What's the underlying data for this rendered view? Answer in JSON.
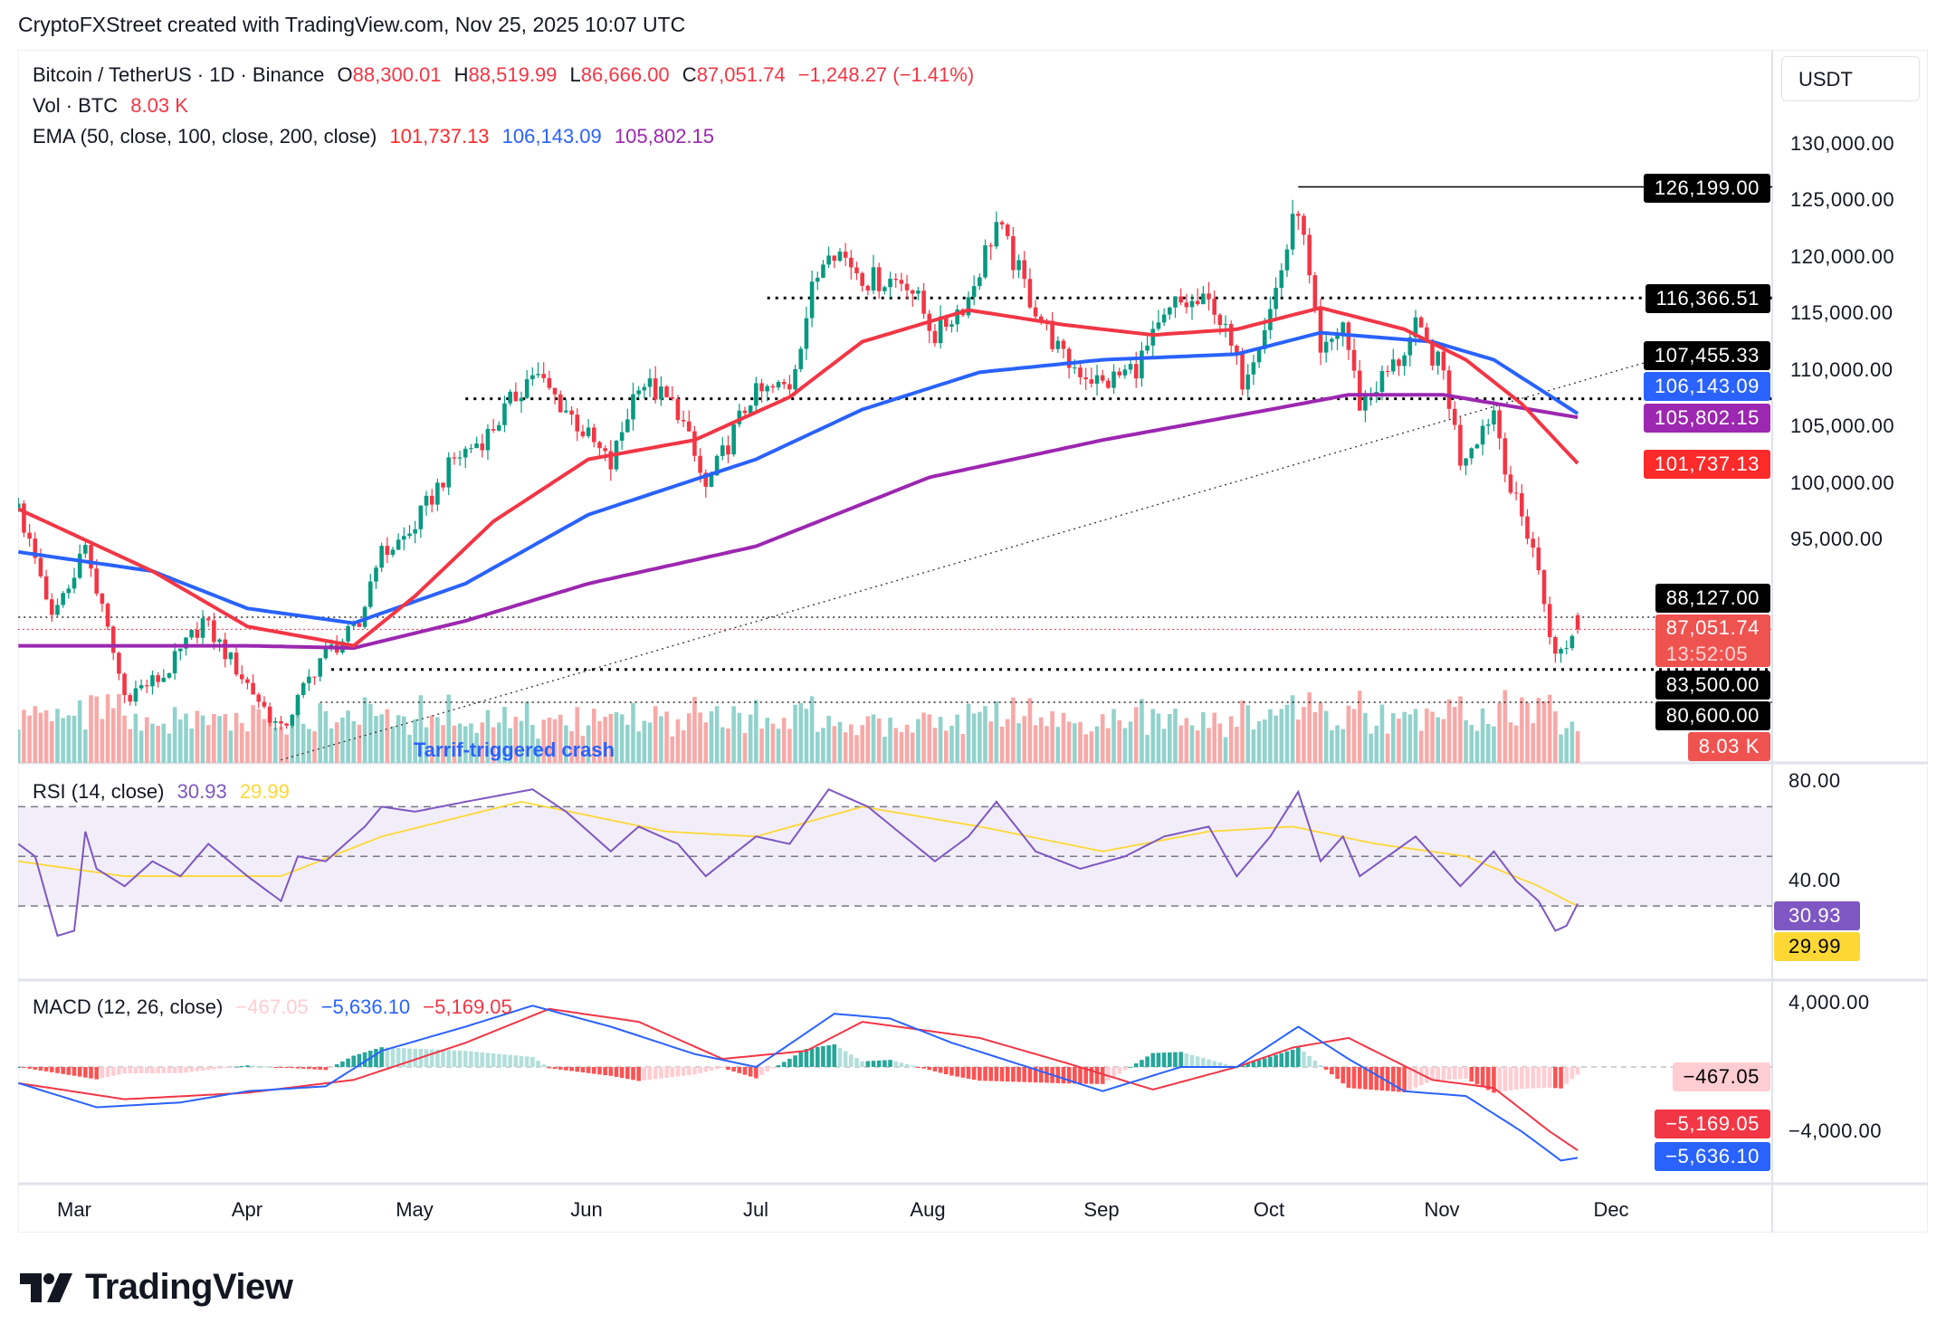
{
  "caption": "CryptoFXStreet created with TradingView.com, Nov 25, 2025 10:07 UTC",
  "header": {
    "symbol": "Bitcoin / TetherUS · 1D · Binance",
    "o_label": "O",
    "open": "88,300.01",
    "h_label": "H",
    "high": "88,519.99",
    "l_label": "L",
    "low": "86,666.00",
    "c_label": "C",
    "close": "87,051.74",
    "change": "−1,248.27 (−1.41%)",
    "vol_label": "Vol · BTC",
    "vol_value": "8.03 K",
    "ema_label": "EMA (50, close, 100, close, 200, close)",
    "ema50": "101,737.13",
    "ema100": "106,143.09",
    "ema200": "105,802.15"
  },
  "rsi_legend": {
    "label": "RSI (14, close)",
    "rsi": "30.93",
    "ma": "29.99"
  },
  "macd_legend": {
    "label": "MACD (12, 26, close)",
    "hist": "−467.05",
    "macd": "−5,636.10",
    "signal": "−5,169.05"
  },
  "currency_button": "USDT",
  "price_ticks": [
    "130,000.00",
    "125,000.00",
    "120,000.00",
    "115,000.00",
    "110,000.00",
    "105,000.00",
    "100,000.00",
    "95,000.00"
  ],
  "rsi_ticks": [
    "80.00",
    "40.00"
  ],
  "macd_ticks": [
    "4,000.00",
    "−4,000.00"
  ],
  "price_labels": [
    {
      "text": "126,199.00",
      "color": "#000000"
    },
    {
      "text": "116,366.51",
      "color": "#000000"
    },
    {
      "text": "107,455.33",
      "color": "#000000"
    },
    {
      "text": "106,143.09",
      "color": "#2962ff"
    },
    {
      "text": "105,802.15",
      "color": "#9c27b0"
    },
    {
      "text": "101,737.13",
      "color": "#ff2a2a"
    },
    {
      "text": "88,127.00",
      "color": "#000000"
    },
    {
      "text": "87,051.74",
      "color": "#ef5350"
    },
    {
      "text": "13:52:05",
      "color": "#ef5350"
    },
    {
      "text": "83,500.00",
      "color": "#000000"
    },
    {
      "text": "80,600.00",
      "color": "#000000"
    },
    {
      "text": "8.03 K",
      "color": "#ef5350"
    }
  ],
  "rsi_labels": [
    {
      "text": "30.93",
      "color": "#7e57c2"
    },
    {
      "text": "29.99",
      "color": "#fdd835"
    }
  ],
  "macd_labels": [
    {
      "text": "−467.05",
      "color": "#ffcdd2"
    },
    {
      "text": "−5,169.05",
      "color": "#f23645"
    },
    {
      "text": "−5,636.10",
      "color": "#2962ff"
    }
  ],
  "months": [
    "Mar",
    "Apr",
    "May",
    "Jun",
    "Jul",
    "Aug",
    "Sep",
    "Oct",
    "Nov",
    "Dec"
  ],
  "annotation": "Tarrif-triggered crash",
  "brand": "TradingView",
  "chart_data": {
    "type": "candlestick",
    "title": "Bitcoin / TetherUS · 1D · Binance",
    "x_range": [
      "2025-02-19",
      "2025-11-25"
    ],
    "ylim": [
      75000,
      133000
    ],
    "grid": false,
    "colors": {
      "up": "#089981",
      "down": "#f23645",
      "ema50": "#f23645",
      "ema100": "#2962ff",
      "ema200": "#9c27b0",
      "rsi": "#7e57c2",
      "rsi_ma": "#fdd835",
      "macd": "#2962ff",
      "signal": "#f23645"
    },
    "last_candle": {
      "date": "2025-11-25",
      "open": 88300.01,
      "high": 88519.99,
      "low": 86666.0,
      "close": 87051.74,
      "volume_k": 8.03
    },
    "close_path": [
      [
        "2025-02-19",
        97700
      ],
      [
        "2025-02-25",
        87800
      ],
      [
        "2025-03-03",
        94400
      ],
      [
        "2025-03-10",
        81200
      ],
      [
        "2025-03-17",
        82900
      ],
      [
        "2025-03-24",
        87800
      ],
      [
        "2025-03-31",
        82900
      ],
      [
        "2025-04-07",
        78000
      ],
      [
        "2025-04-14",
        84500
      ],
      [
        "2025-04-21",
        87300
      ],
      [
        "2025-04-24",
        93300
      ],
      [
        "2025-04-30",
        95500
      ],
      [
        "2025-05-08",
        102100
      ],
      [
        "2025-05-14",
        104300
      ],
      [
        "2025-05-22",
        109800
      ],
      [
        "2025-05-28",
        106500
      ],
      [
        "2025-06-05",
        101500
      ],
      [
        "2025-06-10",
        109200
      ],
      [
        "2025-06-17",
        106500
      ],
      [
        "2025-06-22",
        99400
      ],
      [
        "2025-06-30",
        107600
      ],
      [
        "2025-07-07",
        108700
      ],
      [
        "2025-07-11",
        116900
      ],
      [
        "2025-07-14",
        121300
      ],
      [
        "2025-07-21",
        118000
      ],
      [
        "2025-07-28",
        118000
      ],
      [
        "2025-08-02",
        113100
      ],
      [
        "2025-08-08",
        116400
      ],
      [
        "2025-08-13",
        123000
      ],
      [
        "2025-08-19",
        116400
      ],
      [
        "2025-08-25",
        110900
      ],
      [
        "2025-09-01",
        108700
      ],
      [
        "2025-09-07",
        110300
      ],
      [
        "2025-09-14",
        115800
      ],
      [
        "2025-09-21",
        115800
      ],
      [
        "2025-09-26",
        109200
      ],
      [
        "2025-10-01",
        115300
      ],
      [
        "2025-10-06",
        124600
      ],
      [
        "2025-10-10",
        110900
      ],
      [
        "2025-10-14",
        114200
      ],
      [
        "2025-10-17",
        107000
      ],
      [
        "2025-10-24",
        110900
      ],
      [
        "2025-10-27",
        113600
      ],
      [
        "2025-11-01",
        109800
      ],
      [
        "2025-11-04",
        102100
      ],
      [
        "2025-11-10",
        106500
      ],
      [
        "2025-11-13",
        99400
      ],
      [
        "2025-11-17",
        94400
      ],
      [
        "2025-11-21",
        84500
      ],
      [
        "2025-11-25",
        87051.74
      ]
    ],
    "ema50": [
      [
        "2025-02-19",
        97700
      ],
      [
        "2025-03-15",
        92200
      ],
      [
        "2025-04-01",
        87300
      ],
      [
        "2025-04-20",
        85600
      ],
      [
        "2025-05-01",
        90000
      ],
      [
        "2025-05-15",
        96600
      ],
      [
        "2025-06-01",
        102100
      ],
      [
        "2025-06-20",
        103800
      ],
      [
        "2025-07-07",
        107600
      ],
      [
        "2025-07-20",
        112500
      ],
      [
        "2025-08-08",
        115300
      ],
      [
        "2025-08-25",
        114000
      ],
      [
        "2025-09-10",
        113100
      ],
      [
        "2025-09-25",
        113600
      ],
      [
        "2025-10-10",
        115500
      ],
      [
        "2025-10-25",
        113600
      ],
      [
        "2025-11-05",
        110900
      ],
      [
        "2025-11-15",
        107000
      ],
      [
        "2025-11-25",
        101737.13
      ]
    ],
    "ema100": [
      [
        "2025-02-19",
        93900
      ],
      [
        "2025-03-15",
        92200
      ],
      [
        "2025-04-01",
        88900
      ],
      [
        "2025-04-20",
        87600
      ],
      [
        "2025-05-10",
        91100
      ],
      [
        "2025-06-01",
        97200
      ],
      [
        "2025-07-01",
        102100
      ],
      [
        "2025-07-20",
        106500
      ],
      [
        "2025-08-10",
        109800
      ],
      [
        "2025-09-01",
        110900
      ],
      [
        "2025-09-25",
        111400
      ],
      [
        "2025-10-10",
        113300
      ],
      [
        "2025-10-30",
        112500
      ],
      [
        "2025-11-10",
        110900
      ],
      [
        "2025-11-25",
        106143.09
      ]
    ],
    "ema200": [
      [
        "2025-02-19",
        85600
      ],
      [
        "2025-04-01",
        85600
      ],
      [
        "2025-04-20",
        85400
      ],
      [
        "2025-05-10",
        87800
      ],
      [
        "2025-06-01",
        91100
      ],
      [
        "2025-07-01",
        94400
      ],
      [
        "2025-08-01",
        100500
      ],
      [
        "2025-09-01",
        103800
      ],
      [
        "2025-10-01",
        106500
      ],
      [
        "2025-10-15",
        107800
      ],
      [
        "2025-11-01",
        107800
      ],
      [
        "2025-11-25",
        105802.15
      ]
    ],
    "levels": [
      {
        "price": 126199.0,
        "from": "2025-10-06",
        "style": "solid"
      },
      {
        "price": 116366.51,
        "from": "2025-07-03",
        "style": "dotted"
      },
      {
        "price": 107455.33,
        "from": "2025-05-10",
        "style": "dotted"
      },
      {
        "price": 88127.0,
        "from": "2025-02-19",
        "style": "thin-dotted"
      },
      {
        "price": 83500.0,
        "from": "2025-04-16",
        "style": "dotted"
      },
      {
        "price": 80600.0,
        "from": "2025-04-14",
        "style": "thin-dotted"
      }
    ],
    "trendline": [
      [
        "2025-04-07",
        75500
      ],
      [
        "2025-12-15",
        111800
      ]
    ],
    "rsi": {
      "ylim": [
        0,
        100
      ],
      "band": [
        30,
        70
      ],
      "values": [
        [
          "2025-02-19",
          55
        ],
        [
          "2025-02-22",
          50
        ],
        [
          "2025-02-26",
          18
        ],
        [
          "2025-03-01",
          20
        ],
        [
          "2025-03-03",
          60
        ],
        [
          "2025-03-05",
          45
        ],
        [
          "2025-03-10",
          38
        ],
        [
          "2025-03-15",
          48
        ],
        [
          "2025-03-20",
          42
        ],
        [
          "2025-03-25",
          55
        ],
        [
          "2025-04-01",
          42
        ],
        [
          "2025-04-07",
          32
        ],
        [
          "2025-04-10",
          50
        ],
        [
          "2025-04-15",
          48
        ],
        [
          "2025-04-22",
          62
        ],
        [
          "2025-04-25",
          70
        ],
        [
          "2025-05-01",
          68
        ],
        [
          "2025-05-10",
          72
        ],
        [
          "2025-05-22",
          77
        ],
        [
          "2025-05-28",
          68
        ],
        [
          "2025-06-05",
          52
        ],
        [
          "2025-06-10",
          62
        ],
        [
          "2025-06-17",
          55
        ],
        [
          "2025-06-22",
          42
        ],
        [
          "2025-07-01",
          58
        ],
        [
          "2025-07-07",
          55
        ],
        [
          "2025-07-14",
          77
        ],
        [
          "2025-07-21",
          70
        ],
        [
          "2025-08-02",
          48
        ],
        [
          "2025-08-08",
          58
        ],
        [
          "2025-08-13",
          72
        ],
        [
          "2025-08-20",
          52
        ],
        [
          "2025-08-28",
          45
        ],
        [
          "2025-09-05",
          50
        ],
        [
          "2025-09-12",
          58
        ],
        [
          "2025-09-20",
          62
        ],
        [
          "2025-09-25",
          42
        ],
        [
          "2025-10-01",
          58
        ],
        [
          "2025-10-06",
          76
        ],
        [
          "2025-10-10",
          48
        ],
        [
          "2025-10-14",
          58
        ],
        [
          "2025-10-17",
          42
        ],
        [
          "2025-10-27",
          58
        ],
        [
          "2025-11-04",
          38
        ],
        [
          "2025-11-10",
          52
        ],
        [
          "2025-11-14",
          40
        ],
        [
          "2025-11-18",
          32
        ],
        [
          "2025-11-21",
          20
        ],
        [
          "2025-11-23",
          22
        ],
        [
          "2025-11-25",
          30.93
        ]
      ],
      "ma": [
        [
          "2025-02-19",
          48
        ],
        [
          "2025-03-10",
          42
        ],
        [
          "2025-04-07",
          42
        ],
        [
          "2025-04-25",
          58
        ],
        [
          "2025-05-20",
          72
        ],
        [
          "2025-06-15",
          60
        ],
        [
          "2025-07-01",
          58
        ],
        [
          "2025-07-20",
          70
        ],
        [
          "2025-08-10",
          62
        ],
        [
          "2025-09-01",
          52
        ],
        [
          "2025-09-20",
          60
        ],
        [
          "2025-10-05",
          62
        ],
        [
          "2025-10-20",
          55
        ],
        [
          "2025-11-05",
          50
        ],
        [
          "2025-11-18",
          38
        ],
        [
          "2025-11-25",
          29.99
        ]
      ]
    },
    "macd": {
      "ylim": [
        -7000,
        6500
      ],
      "macd": [
        [
          "2025-02-19",
          -1000
        ],
        [
          "2025-03-05",
          -2500
        ],
        [
          "2025-03-20",
          -2200
        ],
        [
          "2025-04-01",
          -1500
        ],
        [
          "2025-04-15",
          -1200
        ],
        [
          "2025-04-25",
          1000
        ],
        [
          "2025-05-10",
          2500
        ],
        [
          "2025-05-22",
          3800
        ],
        [
          "2025-06-05",
          2500
        ],
        [
          "2025-06-20",
          800
        ],
        [
          "2025-07-01",
          0
        ],
        [
          "2025-07-15",
          3300
        ],
        [
          "2025-07-25",
          3000
        ],
        [
          "2025-08-05",
          1500
        ],
        [
          "2025-08-15",
          400
        ],
        [
          "2025-09-01",
          -1500
        ],
        [
          "2025-09-15",
          0
        ],
        [
          "2025-09-25",
          0
        ],
        [
          "2025-10-06",
          2500
        ],
        [
          "2025-10-15",
          500
        ],
        [
          "2025-10-25",
          -1500
        ],
        [
          "2025-11-05",
          -1800
        ],
        [
          "2025-11-15",
          -4000
        ],
        [
          "2025-11-22",
          -5800
        ],
        [
          "2025-11-25",
          -5636.1
        ]
      ],
      "signal": [
        [
          "2025-02-19",
          -1000
        ],
        [
          "2025-03-10",
          -2000
        ],
        [
          "2025-04-01",
          -1600
        ],
        [
          "2025-04-20",
          -800
        ],
        [
          "2025-05-10",
          1500
        ],
        [
          "2025-05-25",
          3600
        ],
        [
          "2025-06-10",
          2800
        ],
        [
          "2025-06-25",
          500
        ],
        [
          "2025-07-10",
          1000
        ],
        [
          "2025-07-20",
          2800
        ],
        [
          "2025-08-10",
          1800
        ],
        [
          "2025-08-25",
          300
        ],
        [
          "2025-09-10",
          -1400
        ],
        [
          "2025-09-25",
          0
        ],
        [
          "2025-10-05",
          1200
        ],
        [
          "2025-10-15",
          1800
        ],
        [
          "2025-10-30",
          -800
        ],
        [
          "2025-11-10",
          -1300
        ],
        [
          "2025-11-20",
          -4000
        ],
        [
          "2025-11-25",
          -5169.05
        ]
      ]
    }
  }
}
